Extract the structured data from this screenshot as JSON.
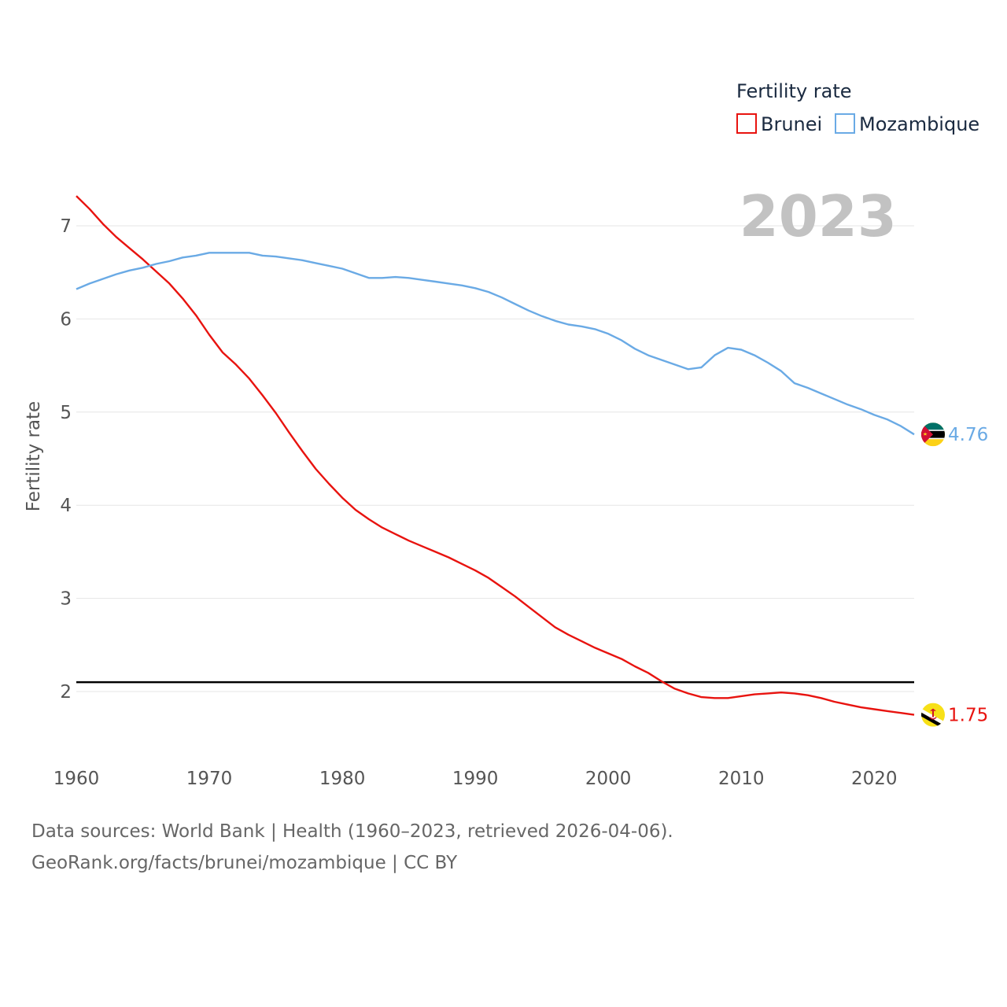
{
  "chart_data": {
    "type": "line",
    "year_label": "2023",
    "xlabel": "",
    "ylabel": "Fertility rate",
    "xlim": [
      1960,
      2023
    ],
    "ylim": [
      1.4,
      7.4
    ],
    "x_ticks": [
      "1960",
      "1970",
      "1980",
      "1990",
      "2000",
      "2010",
      "2020"
    ],
    "y_ticks": [
      "2",
      "3",
      "4",
      "5",
      "6",
      "7"
    ],
    "grid": true,
    "reference_line": 2.1,
    "legend": {
      "title": "Fertility rate",
      "position": "top-right",
      "entries": [
        "Brunei",
        "Mozambique"
      ]
    },
    "x": [
      1960,
      1961,
      1962,
      1963,
      1964,
      1965,
      1966,
      1967,
      1968,
      1969,
      1970,
      1971,
      1972,
      1973,
      1974,
      1975,
      1976,
      1977,
      1978,
      1979,
      1980,
      1981,
      1982,
      1983,
      1984,
      1985,
      1986,
      1987,
      1988,
      1989,
      1990,
      1991,
      1992,
      1993,
      1994,
      1995,
      1996,
      1997,
      1998,
      1999,
      2000,
      2001,
      2002,
      2003,
      2004,
      2005,
      2006,
      2007,
      2008,
      2009,
      2010,
      2011,
      2012,
      2013,
      2014,
      2015,
      2016,
      2017,
      2018,
      2019,
      2020,
      2021,
      2022,
      2023
    ],
    "series": [
      {
        "name": "Brunei",
        "color": "#e8130f",
        "end_label": "1.75",
        "flag": "brunei-flag-icon",
        "values": [
          7.32,
          7.18,
          7.02,
          6.88,
          6.76,
          6.64,
          6.51,
          6.38,
          6.22,
          6.04,
          5.83,
          5.64,
          5.51,
          5.36,
          5.18,
          4.99,
          4.78,
          4.58,
          4.39,
          4.23,
          4.08,
          3.95,
          3.85,
          3.76,
          3.69,
          3.62,
          3.56,
          3.5,
          3.44,
          3.37,
          3.3,
          3.22,
          3.12,
          3.02,
          2.91,
          2.8,
          2.69,
          2.61,
          2.54,
          2.47,
          2.41,
          2.35,
          2.27,
          2.2,
          2.11,
          2.03,
          1.98,
          1.94,
          1.93,
          1.93,
          1.95,
          1.97,
          1.98,
          1.99,
          1.98,
          1.96,
          1.93,
          1.89,
          1.86,
          1.83,
          1.81,
          1.79,
          1.77,
          1.75
        ]
      },
      {
        "name": "Mozambique",
        "color": "#6aaae5",
        "end_label": "4.76",
        "flag": "mozambique-flag-icon",
        "values": [
          6.32,
          6.38,
          6.43,
          6.48,
          6.52,
          6.55,
          6.59,
          6.62,
          6.66,
          6.68,
          6.71,
          6.71,
          6.71,
          6.71,
          6.68,
          6.67,
          6.65,
          6.63,
          6.6,
          6.57,
          6.54,
          6.49,
          6.44,
          6.44,
          6.45,
          6.44,
          6.42,
          6.4,
          6.38,
          6.36,
          6.33,
          6.29,
          6.23,
          6.16,
          6.09,
          6.03,
          5.98,
          5.94,
          5.92,
          5.89,
          5.84,
          5.77,
          5.68,
          5.61,
          5.56,
          5.51,
          5.46,
          5.48,
          5.61,
          5.69,
          5.67,
          5.61,
          5.53,
          5.44,
          5.31,
          5.26,
          5.2,
          5.14,
          5.08,
          5.03,
          4.97,
          4.92,
          4.85,
          4.76
        ]
      }
    ]
  },
  "footer": {
    "line1": "Data sources: World Bank | Health (1960–2023, retrieved 2026-04-06).",
    "line2": "GeoRank.org/facts/brunei/mozambique | CC BY"
  }
}
